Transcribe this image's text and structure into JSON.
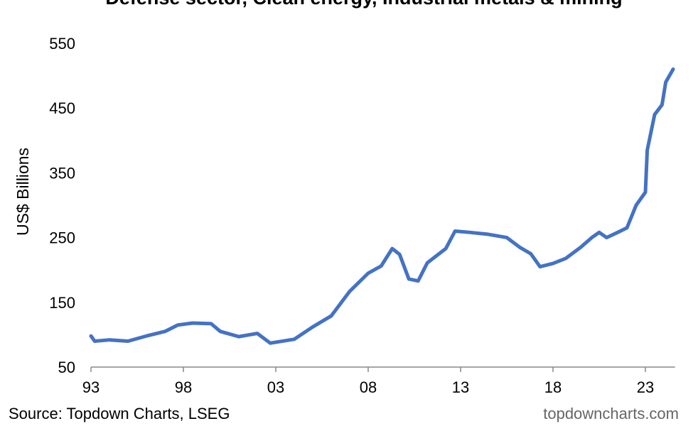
{
  "chart_data": {
    "type": "line",
    "title": "Defense sector, Clean energy, Industrial metals & mining",
    "y_label": "US$ Billions",
    "source": "Source: Topdown Charts, LSEG",
    "watermark": "topdowncharts.com",
    "color": "#4472c4",
    "xlim": [
      1993,
      2024.6
    ],
    "xticks": [
      {
        "value": 1993,
        "label": "93"
      },
      {
        "value": 1998,
        "label": "98"
      },
      {
        "value": 2003,
        "label": "03"
      },
      {
        "value": 2008,
        "label": "08"
      },
      {
        "value": 2013,
        "label": "13"
      },
      {
        "value": 2018,
        "label": "18"
      },
      {
        "value": 2023,
        "label": "23"
      }
    ],
    "ylim": [
      50,
      550
    ],
    "yticks": [
      50,
      150,
      250,
      350,
      450,
      550
    ],
    "x": [
      1993,
      1993.2,
      1994,
      1995,
      1996,
      1997,
      1997.7,
      1998.5,
      1999.5,
      2000,
      2001,
      2002,
      2002.7,
      2004,
      2005,
      2006,
      2007,
      2008,
      2008.7,
      2009.3,
      2009.7,
      2010.2,
      2010.7,
      2011.2,
      2011.7,
      2012.2,
      2012.7,
      2013.5,
      2014.5,
      2015.5,
      2016.2,
      2016.8,
      2017.3,
      2018,
      2018.7,
      2019.5,
      2020.1,
      2020.5,
      2020.9,
      2021.5,
      2022,
      2022.5,
      2023,
      2023.1,
      2023.5,
      2023.9,
      2024.1,
      2024.5
    ],
    "series": [
      {
        "name": "US$ Billions",
        "color": "#4472c4",
        "values": [
          98,
          90,
          92,
          90,
          98,
          105,
          115,
          118,
          117,
          105,
          97,
          102,
          87,
          93,
          112,
          129,
          167,
          195,
          206,
          233,
          224,
          186,
          183,
          211,
          222,
          233,
          260,
          258,
          255,
          250,
          235,
          225,
          205,
          210,
          218,
          235,
          250,
          258,
          250,
          258,
          265,
          300,
          320,
          385,
          440,
          455,
          490,
          510
        ]
      }
    ]
  }
}
